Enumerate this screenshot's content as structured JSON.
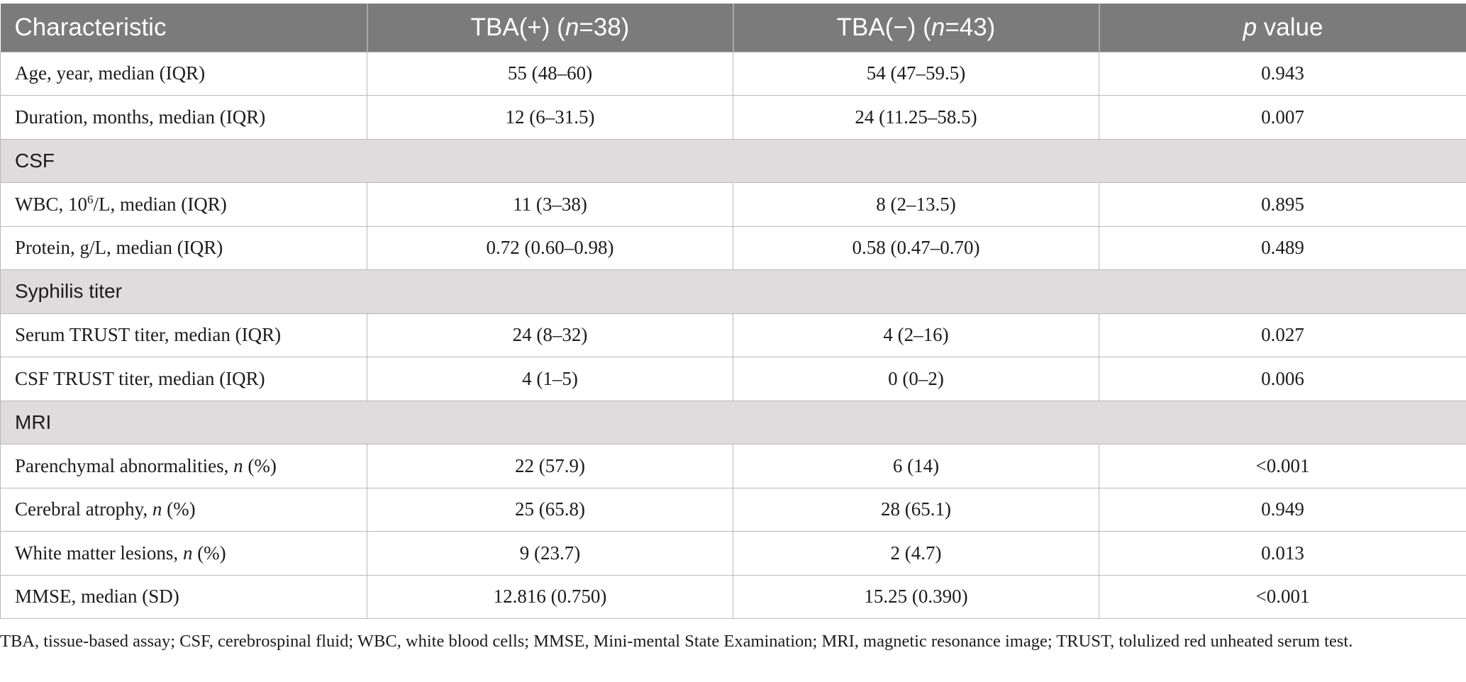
{
  "header": {
    "col1": "Characteristic",
    "col2_pre": "TBA(+) (",
    "col2_n": "n",
    "col2_post": "=38)",
    "col3_pre": "TBA(−) (",
    "col3_n": "n",
    "col3_post": "=43)",
    "col4_p": "p",
    "col4_post": " value"
  },
  "rows": {
    "age": {
      "label": "Age, year, median (IQR)",
      "pos": "55 (48–60)",
      "neg": "54 (47–59.5)",
      "p": "0.943"
    },
    "duration": {
      "label": "Duration, months, median (IQR)",
      "pos": "12 (6–31.5)",
      "neg": "24 (11.25–58.5)",
      "p": "0.007"
    },
    "csf_section": "CSF",
    "wbc": {
      "label_pre": "WBC, 10",
      "label_sup": "6",
      "label_post": "/L, median (IQR)",
      "pos": "11 (3–38)",
      "neg": "8 (2–13.5)",
      "p": "0.895"
    },
    "protein": {
      "label": "Protein, g/L, median (IQR)",
      "pos": "0.72 (0.60–0.98)",
      "neg": "0.58 (0.47–0.70)",
      "p": "0.489"
    },
    "syphilis_section": "Syphilis titer",
    "serum_trust": {
      "label": "Serum TRUST titer, median (IQR)",
      "pos": "24 (8–32)",
      "neg": "4 (2–16)",
      "p": "0.027"
    },
    "csf_trust": {
      "label": "CSF TRUST titer, median (IQR)",
      "pos": "4 (1–5)",
      "neg": "0 (0–2)",
      "p": "0.006"
    },
    "mri_section": "MRI",
    "parenchymal": {
      "label_pre": "Parenchymal abnormalities, ",
      "label_n": "n",
      "label_post": " (%)",
      "pos": "22 (57.9)",
      "neg": "6 (14)",
      "p": "<0.001"
    },
    "atrophy": {
      "label_pre": "Cerebral atrophy, ",
      "label_n": "n",
      "label_post": " (%)",
      "pos": "25 (65.8)",
      "neg": "28 (65.1)",
      "p": "0.949"
    },
    "white_matter": {
      "label_pre": "White matter lesions, ",
      "label_n": "n",
      "label_post": " (%)",
      "pos": "9 (23.7)",
      "neg": "2 (4.7)",
      "p": "0.013"
    },
    "mmse": {
      "label": "MMSE, median (SD)",
      "pos": "12.816 (0.750)",
      "neg": "15.25 (0.390)",
      "p": "<0.001"
    }
  },
  "footnote": "TBA, tissue-based assay; CSF, cerebrospinal fluid; WBC, white blood cells; MMSE, Mini-mental State Examination; MRI, magnetic resonance image; TRUST, tolulized red unheated serum test."
}
